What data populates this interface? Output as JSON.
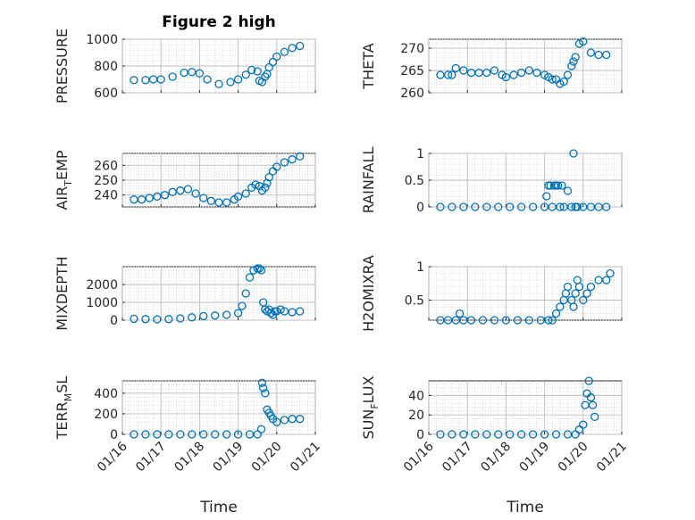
{
  "figure_title": "Figure 2 high",
  "colors": {
    "marker": "#0072BD",
    "axis": "#262626"
  },
  "x_axis": {
    "label": "Time",
    "tick_labels": [
      "01/16",
      "01/17",
      "01/18",
      "01/19",
      "01/20",
      "01/21"
    ]
  },
  "chart_data": [
    {
      "type": "scatter",
      "ylabel": "PRESSURE",
      "ylim": [
        600,
        1000
      ],
      "yticks": [
        600,
        800,
        1000
      ],
      "ytick_labels": [
        "600",
        "800",
        "1000"
      ],
      "xlim": [
        0,
        5
      ],
      "grid": true,
      "series": [
        {
          "x": [
            0.3,
            0.6,
            0.8,
            1.0,
            1.3,
            1.6,
            1.8,
            2.0,
            2.2,
            2.5,
            2.8,
            3.0,
            3.2,
            3.35,
            3.5,
            3.55,
            3.62,
            3.7,
            3.75,
            3.8,
            3.9,
            4.0,
            4.2,
            4.4,
            4.6
          ],
          "y": [
            695,
            695,
            700,
            700,
            720,
            750,
            755,
            745,
            700,
            665,
            680,
            700,
            735,
            770,
            760,
            690,
            680,
            720,
            740,
            790,
            830,
            870,
            905,
            935,
            950
          ]
        }
      ]
    },
    {
      "type": "scatter",
      "ylabel": "THETA",
      "ylim": [
        260,
        272
      ],
      "yticks": [
        260,
        265,
        270
      ],
      "ytick_labels": [
        "260",
        "265",
        "270"
      ],
      "xlim": [
        0,
        5
      ],
      "grid": true,
      "series": [
        {
          "x": [
            0.3,
            0.5,
            0.6,
            0.7,
            0.9,
            1.1,
            1.3,
            1.5,
            1.7,
            1.9,
            2.0,
            2.2,
            2.4,
            2.6,
            2.8,
            3.0,
            3.1,
            3.2,
            3.3,
            3.4,
            3.5,
            3.6,
            3.7,
            3.75,
            3.8,
            3.9,
            4.0,
            4.2,
            4.4,
            4.6
          ],
          "y": [
            264,
            264,
            264,
            265.5,
            265,
            264.5,
            264.5,
            264.5,
            265,
            264,
            263.5,
            264,
            264.5,
            265,
            264.5,
            264,
            263.5,
            263,
            263,
            262,
            262.5,
            264,
            266,
            267,
            268,
            271,
            271.5,
            269,
            268.5,
            268.5
          ]
        }
      ]
    },
    {
      "type": "scatter",
      "ylabel": "AIR_TEMP",
      "ylim": [
        232,
        268
      ],
      "yticks": [
        240,
        250,
        260
      ],
      "ytick_labels": [
        "240",
        "250",
        "260"
      ],
      "xlim": [
        0,
        5
      ],
      "grid": true,
      "series": [
        {
          "x": [
            0.3,
            0.5,
            0.7,
            0.9,
            1.1,
            1.3,
            1.5,
            1.7,
            1.9,
            2.1,
            2.3,
            2.5,
            2.7,
            2.9,
            3.0,
            3.2,
            3.35,
            3.45,
            3.55,
            3.62,
            3.7,
            3.75,
            3.8,
            3.9,
            4.0,
            4.2,
            4.4,
            4.6
          ],
          "y": [
            237,
            237,
            238,
            239,
            240,
            242,
            243,
            244,
            241,
            238,
            236,
            235,
            235,
            237,
            239,
            241,
            245,
            247,
            246,
            243,
            245,
            248,
            252,
            256,
            259,
            262,
            264,
            266
          ]
        }
      ]
    },
    {
      "type": "scatter",
      "ylabel": "RAINFALL",
      "ylim": [
        0,
        1
      ],
      "yticks": [
        0,
        0.5,
        1
      ],
      "ytick_labels": [
        "0",
        "0.5",
        "1"
      ],
      "xlim": [
        0,
        5
      ],
      "grid": true,
      "series": [
        {
          "x": [
            0.3,
            0.6,
            0.9,
            1.2,
            1.5,
            1.8,
            2.1,
            2.4,
            2.7,
            3.0,
            3.05,
            3.1,
            3.15,
            3.2,
            3.25,
            3.3,
            3.35,
            3.4,
            3.45,
            3.5,
            3.6,
            3.7,
            3.75,
            3.8,
            3.85,
            4.0,
            4.2,
            4.4,
            4.6
          ],
          "y": [
            0,
            0,
            0,
            0,
            0,
            0,
            0,
            0,
            0,
            0,
            0.2,
            0.4,
            0.4,
            0,
            0.4,
            0.4,
            0.4,
            0,
            0.4,
            0,
            0.3,
            0,
            1,
            0,
            0,
            0,
            0,
            0,
            0
          ]
        }
      ]
    },
    {
      "type": "scatter",
      "ylabel": "MIXDEPTH",
      "ylim": [
        0,
        3000
      ],
      "yticks": [
        0,
        1000,
        2000
      ],
      "ytick_labels": [
        "0",
        "1000",
        "2000"
      ],
      "xlim": [
        0,
        5
      ],
      "grid": true,
      "series": [
        {
          "x": [
            0.3,
            0.6,
            0.9,
            1.2,
            1.5,
            1.8,
            2.1,
            2.4,
            2.7,
            3.0,
            3.1,
            3.2,
            3.3,
            3.4,
            3.5,
            3.55,
            3.6,
            3.65,
            3.7,
            3.75,
            3.8,
            3.85,
            3.9,
            3.95,
            4.0,
            4.1,
            4.2,
            4.4,
            4.6
          ],
          "y": [
            80,
            60,
            50,
            60,
            100,
            160,
            230,
            260,
            300,
            400,
            800,
            1500,
            2400,
            2800,
            2900,
            2900,
            2800,
            1000,
            600,
            500,
            600,
            400,
            300,
            500,
            500,
            600,
            500,
            450,
            500
          ]
        }
      ]
    },
    {
      "type": "scatter",
      "ylabel": "H2OMIXRA",
      "ylim": [
        0.2,
        1
      ],
      "yticks": [
        0.5,
        1
      ],
      "ytick_labels": [
        "0.5",
        "1"
      ],
      "xlim": [
        0,
        5
      ],
      "grid": true,
      "series": [
        {
          "x": [
            0.3,
            0.5,
            0.7,
            0.8,
            0.9,
            1.1,
            1.4,
            1.7,
            2.0,
            2.3,
            2.6,
            2.9,
            3.1,
            3.2,
            3.3,
            3.4,
            3.5,
            3.55,
            3.6,
            3.7,
            3.75,
            3.8,
            3.85,
            3.9,
            4.0,
            4.1,
            4.2,
            4.4,
            4.6,
            4.7
          ],
          "y": [
            0.2,
            0.2,
            0.2,
            0.3,
            0.2,
            0.2,
            0.2,
            0.2,
            0.2,
            0.2,
            0.2,
            0.2,
            0.2,
            0.2,
            0.3,
            0.4,
            0.5,
            0.6,
            0.7,
            0.5,
            0.4,
            0.6,
            0.8,
            0.7,
            0.5,
            0.6,
            0.7,
            0.8,
            0.8,
            0.9
          ]
        }
      ]
    },
    {
      "type": "scatter",
      "ylabel": "TERR_MSL",
      "ylim": [
        0,
        520
      ],
      "yticks": [
        0,
        200,
        400
      ],
      "ytick_labels": [
        "0",
        "200",
        "400"
      ],
      "xlim": [
        0,
        5
      ],
      "grid": true,
      "series": [
        {
          "x": [
            0.3,
            0.6,
            0.9,
            1.2,
            1.5,
            1.8,
            2.1,
            2.4,
            2.7,
            3.0,
            3.3,
            3.5,
            3.6,
            3.62,
            3.65,
            3.7,
            3.75,
            3.8,
            3.85,
            3.9,
            4.0,
            4.2,
            4.4,
            4.6
          ],
          "y": [
            0,
            0,
            0,
            0,
            0,
            0,
            0,
            0,
            0,
            0,
            0,
            0,
            50,
            500,
            450,
            400,
            240,
            210,
            180,
            150,
            120,
            140,
            150,
            150
          ]
        }
      ]
    },
    {
      "type": "scatter",
      "ylabel": "SUN_FLUX",
      "ylim": [
        0,
        55
      ],
      "yticks": [
        0,
        20,
        40
      ],
      "ytick_labels": [
        "0",
        "20",
        "40"
      ],
      "xlim": [
        0,
        5
      ],
      "grid": true,
      "series": [
        {
          "x": [
            0.3,
            0.6,
            0.9,
            1.2,
            1.5,
            1.8,
            2.1,
            2.4,
            2.7,
            3.0,
            3.3,
            3.6,
            3.8,
            3.9,
            4.0,
            4.05,
            4.1,
            4.15,
            4.2,
            4.25,
            4.3
          ],
          "y": [
            0,
            0,
            0,
            0,
            0,
            0,
            0,
            0,
            0,
            0,
            0,
            0,
            0,
            5,
            10,
            30,
            42,
            55,
            38,
            30,
            18
          ]
        }
      ]
    }
  ]
}
